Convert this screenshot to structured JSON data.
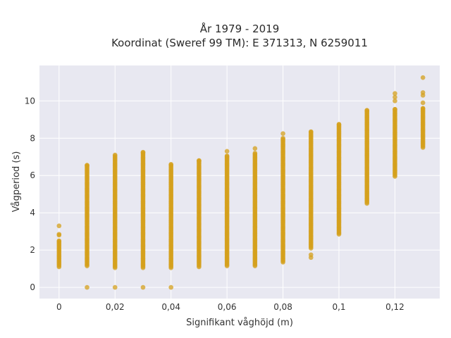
{
  "chart_data": {
    "type": "scatter",
    "title_line1": "År 1979 - 2019",
    "title_line2": "Koordinat (Sweref 99 TM): E 371313, N 6259011",
    "xlabel": "Signifikant våghöjd (m)",
    "ylabel": "Vågperiod (s)",
    "xlim": [
      -0.007,
      0.136
    ],
    "ylim": [
      -0.6,
      11.9
    ],
    "xticks": [
      0,
      0.02,
      0.04,
      0.06,
      0.08,
      0.1,
      0.12
    ],
    "xtick_labels": [
      "0",
      "0,02",
      "0,04",
      "0,06",
      "0,08",
      "0,1",
      "0,12"
    ],
    "yticks": [
      0,
      2,
      4,
      6,
      8,
      10
    ],
    "ytick_labels": [
      "0",
      "2",
      "4",
      "6",
      "8",
      "10"
    ],
    "grid": true,
    "colors": {
      "background": "#e8e8f1",
      "grid": "#ffffff",
      "marker": "#d4a01c"
    },
    "columns": [
      {
        "x": 0.0,
        "min": 1.1,
        "max": 2.5,
        "outliers": [
          2.8,
          2.85,
          3.3
        ]
      },
      {
        "x": 0.01,
        "min": 1.15,
        "max": 6.55,
        "outliers": [
          0
        ]
      },
      {
        "x": 0.02,
        "min": 1.05,
        "max": 7.1,
        "outliers": [
          0
        ]
      },
      {
        "x": 0.03,
        "min": 1.05,
        "max": 7.25,
        "outliers": [
          0
        ]
      },
      {
        "x": 0.04,
        "min": 1.05,
        "max": 6.6,
        "outliers": [
          0
        ]
      },
      {
        "x": 0.05,
        "min": 1.1,
        "max": 6.8,
        "outliers": []
      },
      {
        "x": 0.06,
        "min": 1.15,
        "max": 7.05,
        "outliers": [
          7.3
        ]
      },
      {
        "x": 0.07,
        "min": 1.15,
        "max": 7.2,
        "outliers": [
          7.45
        ]
      },
      {
        "x": 0.08,
        "min": 1.35,
        "max": 8.0,
        "outliers": [
          8.25
        ]
      },
      {
        "x": 0.09,
        "min": 2.1,
        "max": 8.35,
        "outliers": [
          1.6,
          1.75
        ]
      },
      {
        "x": 0.1,
        "min": 2.85,
        "max": 8.75,
        "outliers": []
      },
      {
        "x": 0.11,
        "min": 4.5,
        "max": 9.5,
        "outliers": []
      },
      {
        "x": 0.12,
        "min": 5.95,
        "max": 9.55,
        "outliers": [
          10.0,
          10.2,
          10.4
        ]
      },
      {
        "x": 0.13,
        "min": 7.5,
        "max": 9.6,
        "outliers": [
          9.9,
          10.3,
          10.45,
          11.25
        ]
      }
    ]
  }
}
